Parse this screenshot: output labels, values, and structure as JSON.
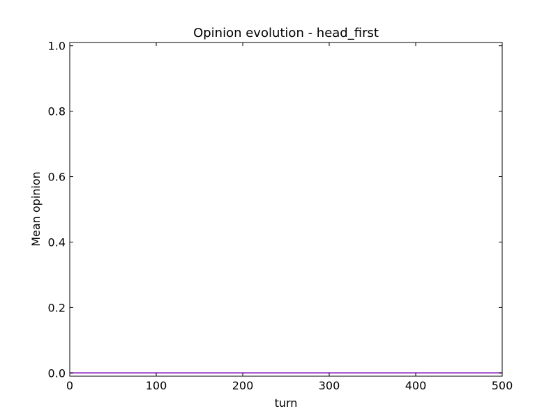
{
  "chart_data": {
    "type": "line",
    "title": "Opinion evolution - head_first",
    "xlabel": "turn",
    "ylabel": "Mean opinion",
    "xlim": [
      0,
      500
    ],
    "ylim": [
      -0.01,
      1.01
    ],
    "xticks": [
      0,
      100,
      200,
      300,
      400,
      500
    ],
    "xtick_labels": [
      "0",
      "100",
      "200",
      "300",
      "400",
      "500"
    ],
    "yticks": [
      0.0,
      0.2,
      0.4,
      0.6,
      0.8,
      1.0
    ],
    "ytick_labels": [
      "0.0",
      "0.2",
      "0.4",
      "0.6",
      "0.8",
      "1.0"
    ],
    "grid": false,
    "series": [
      {
        "color": "#9b3fc9",
        "x": [
          0,
          500
        ],
        "y": [
          0.0,
          0.0
        ]
      }
    ]
  }
}
